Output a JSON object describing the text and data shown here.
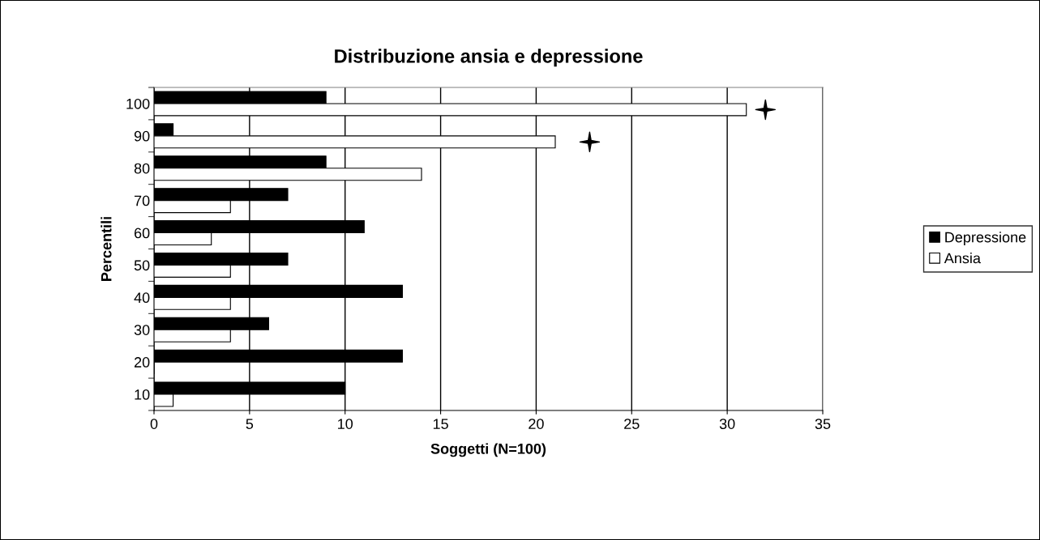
{
  "chart_data": {
    "type": "bar",
    "orientation": "horizontal",
    "title": "Distribuzione ansia e depressione",
    "xlabel": "Soggetti (N=100)",
    "ylabel": "Percentili",
    "categories": [
      "100",
      "90",
      "80",
      "70",
      "60",
      "50",
      "40",
      "30",
      "20",
      "10"
    ],
    "series": [
      {
        "name": "Depressione",
        "color": "#000000",
        "values": [
          9,
          1,
          9,
          7,
          11,
          7,
          13,
          6,
          13,
          10
        ]
      },
      {
        "name": "Ansia",
        "color": "#ffffff",
        "values": [
          31,
          21,
          14,
          4,
          3,
          4,
          4,
          4,
          0,
          1
        ]
      },
      {
        "type": "scatter",
        "marker": "star",
        "color": "#000000",
        "values": [
          32,
          22.8,
          null,
          null,
          null,
          null,
          null,
          null,
          null,
          null
        ]
      }
    ],
    "xlim": [
      0,
      35
    ],
    "xticks": [
      0,
      5,
      10,
      15,
      20,
      25,
      30,
      35
    ],
    "grid": "x",
    "legend": "right"
  }
}
